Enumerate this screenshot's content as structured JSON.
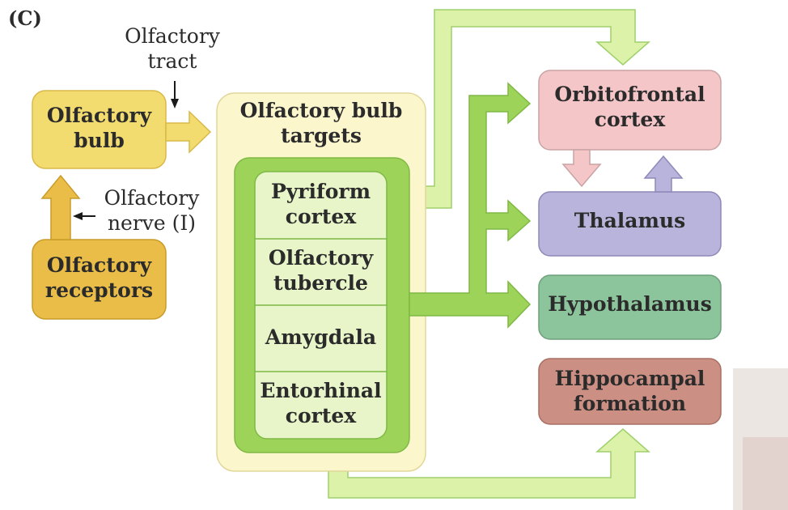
{
  "panel_label": "(C)",
  "olfactory_tract_label": "Olfactory\ntract",
  "olfactory_nerve_label": "Olfactory\nnerve (I)",
  "olfactory_bulb": "Olfactory\nbulb",
  "olfactory_receptors": "Olfactory\nreceptors",
  "targets": {
    "title": "Olfactory bulb\ntargets",
    "regions": [
      "Pyriform\ncortex",
      "Olfactory\ntubercle",
      "Amygdala",
      "Entorhinal\ncortex"
    ]
  },
  "destinations": [
    "Orbitofrontal\ncortex",
    "Thalamus",
    "Hypothalamus",
    "Hippocampal\nformation"
  ],
  "colors": {
    "bulb_fill": "#f3dc6f",
    "receptors_fill": "#e9bd47",
    "targets_outer": "#fcf6cc",
    "targets_inner": "#9ed35a",
    "region_fill": "#e7f5c8",
    "arrow_light": "#dcf2a8",
    "arrow_green": "#9ed35a",
    "orbitofrontal": "#f4c6c8",
    "thalamus": "#b9b4dc",
    "hypothalamus": "#8cc59c",
    "hippocampal": "#cc8f83"
  }
}
